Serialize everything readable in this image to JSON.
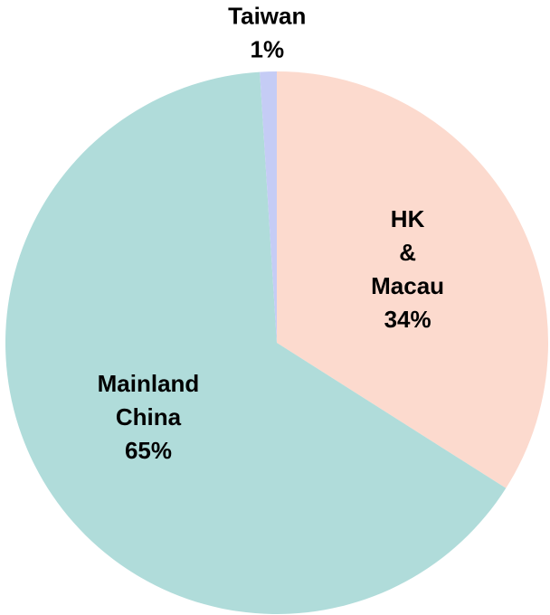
{
  "chart_data": {
    "type": "pie",
    "categories": [
      "HK & Macau",
      "Mainland China",
      "Taiwan"
    ],
    "values": [
      34,
      65,
      1
    ],
    "value_labels": [
      "34%",
      "65%",
      "1%"
    ],
    "colors": [
      "#fcdace",
      "#b0dcda",
      "#c5ccf5"
    ]
  }
}
